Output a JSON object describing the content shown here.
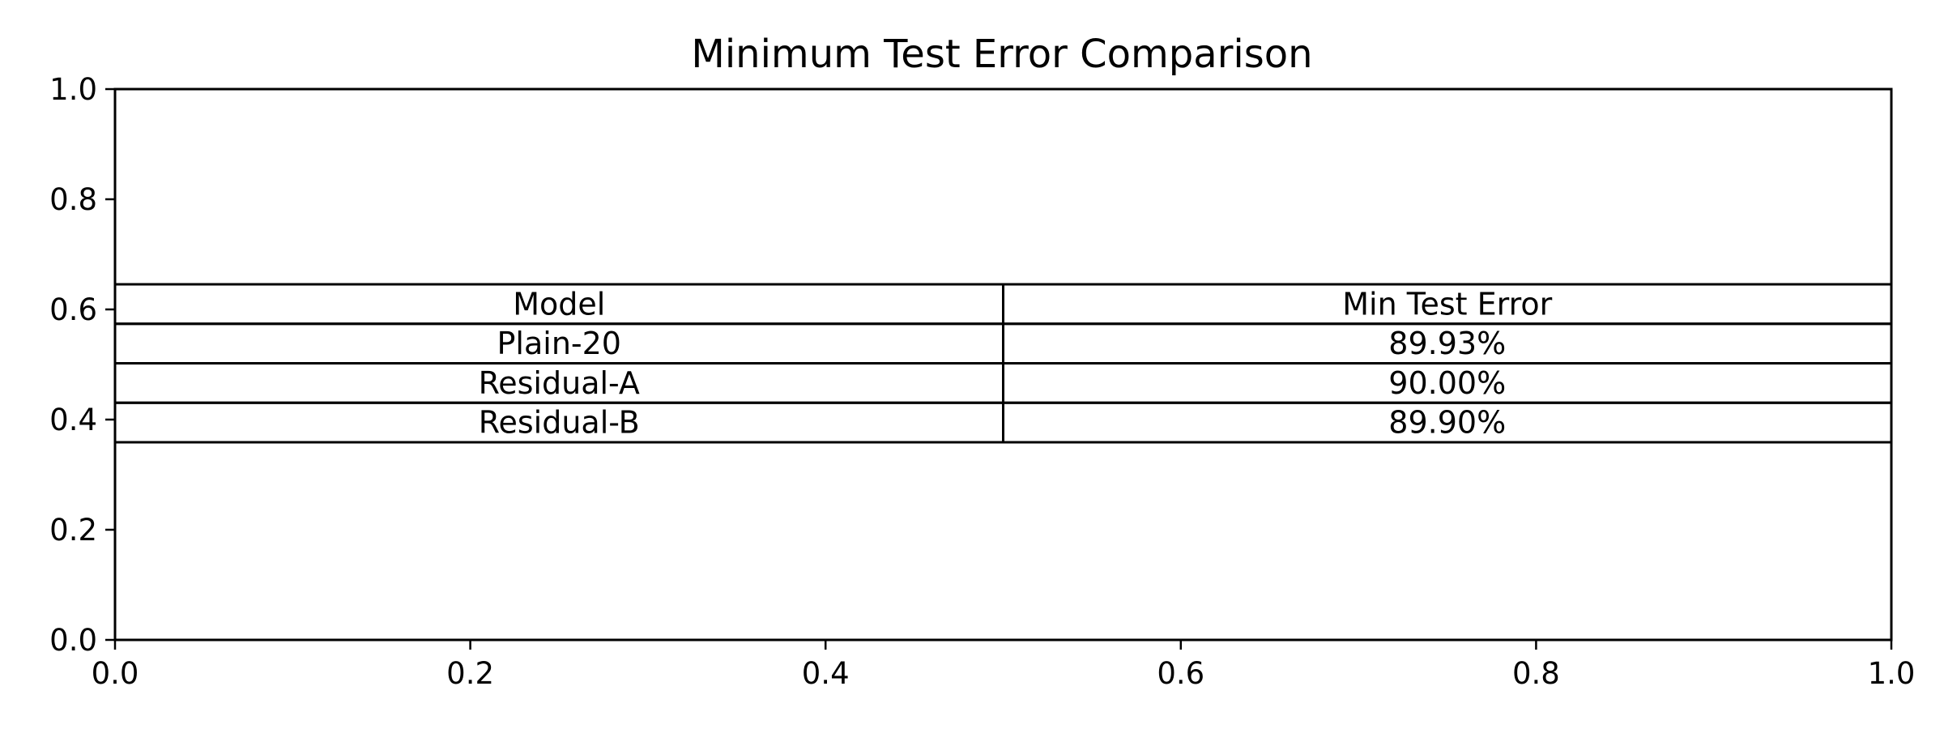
{
  "chart_data": {
    "type": "table",
    "title": "Minimum Test Error Comparison",
    "xlabel": "",
    "ylabel": "",
    "xlim": [
      0.0,
      1.0
    ],
    "ylim": [
      0.0,
      1.0
    ],
    "x_ticks": [
      "0.0",
      "0.2",
      "0.4",
      "0.6",
      "0.8",
      "1.0"
    ],
    "y_ticks": [
      "0.0",
      "0.2",
      "0.4",
      "0.6",
      "0.8",
      "1.0"
    ],
    "grid": false,
    "table": {
      "columns": [
        "Model",
        "Min Test Error"
      ],
      "rows": [
        [
          "Plain-20",
          "89.93%"
        ],
        [
          "Residual-A",
          "90.00%"
        ],
        [
          "Residual-B",
          "89.90%"
        ]
      ]
    }
  },
  "colors": {
    "line": "#000000",
    "background": "#ffffff"
  }
}
